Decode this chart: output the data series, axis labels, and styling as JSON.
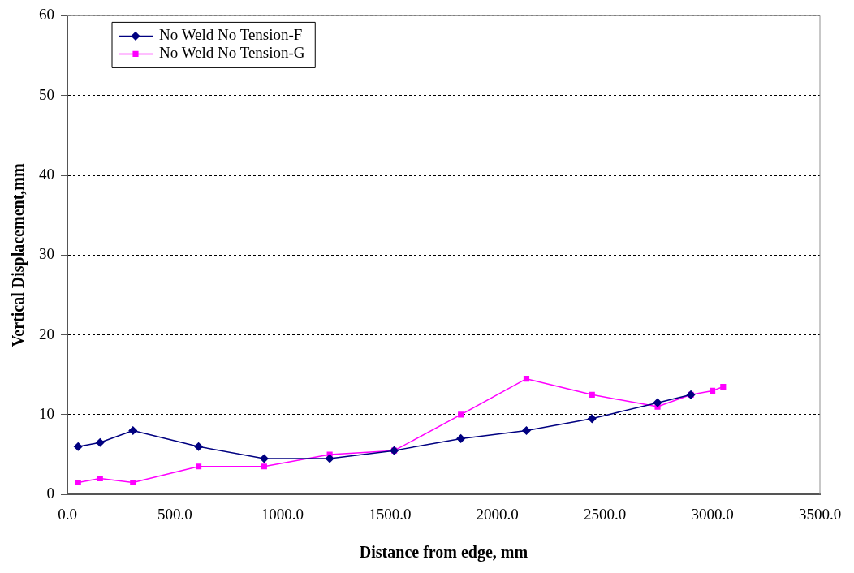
{
  "chart_data": {
    "type": "line",
    "xlabel": "Distance from edge, mm",
    "ylabel": "Vertical Displacement,mm",
    "xlim": [
      0,
      3500
    ],
    "xticks": [
      {
        "value": 0,
        "label": "0.0"
      },
      {
        "value": 500,
        "label": "500.0"
      },
      {
        "value": 1000,
        "label": "1000.0"
      },
      {
        "value": 1500,
        "label": "1500.0"
      },
      {
        "value": 2000,
        "label": "2000.0"
      },
      {
        "value": 2500,
        "label": "2500.0"
      },
      {
        "value": 3000,
        "label": "3000.0"
      },
      {
        "value": 3500,
        "label": "3500.0"
      }
    ],
    "ylim": [
      0,
      60
    ],
    "yticks": [
      0,
      10,
      20,
      30,
      40,
      50,
      60
    ],
    "grid": "y",
    "legend": "top left",
    "line_style": "solid",
    "series": [
      {
        "name": "No Weld No Tension-F",
        "color": "#000080",
        "marker": "diamond",
        "x": [
          50,
          152,
          305,
          610,
          915,
          1220,
          1520,
          1830,
          2135,
          2440,
          2745,
          2900
        ],
        "values": [
          6,
          6.5,
          8,
          6,
          4.5,
          4.5,
          5.5,
          7,
          8,
          9.5,
          11.5,
          12.5
        ]
      },
      {
        "name": "No Weld No Tension-G",
        "color": "#ff00ff",
        "marker": "square",
        "x": [
          50,
          152,
          305,
          610,
          915,
          1220,
          1520,
          1830,
          2135,
          2440,
          2745,
          2900,
          3000,
          3050
        ],
        "values": [
          1.5,
          2,
          1.5,
          3.5,
          3.5,
          5,
          5.5,
          10,
          14.5,
          12.5,
          11,
          12.5,
          13,
          13.5
        ]
      }
    ]
  }
}
